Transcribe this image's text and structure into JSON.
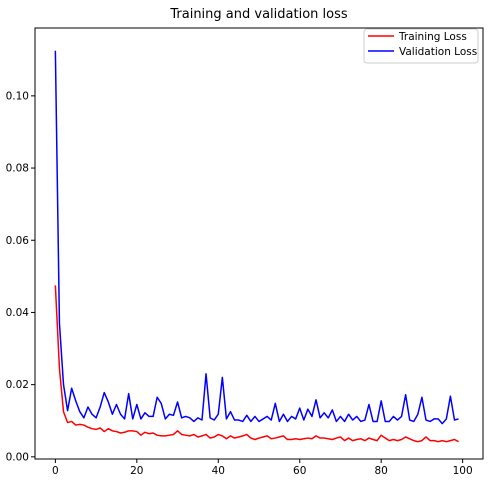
{
  "chart_data": {
    "type": "line",
    "title": "Training and validation loss",
    "xlabel": "",
    "ylabel": "",
    "xlim": [
      -5,
      105
    ],
    "ylim": [
      -0.0006,
      0.1188
    ],
    "x_ticks": [
      0,
      20,
      40,
      60,
      80,
      100
    ],
    "y_ticks": [
      0.0,
      0.02,
      0.04,
      0.06,
      0.08,
      0.1
    ],
    "x_tick_labels": [
      "0",
      "20",
      "40",
      "60",
      "80",
      "100"
    ],
    "y_tick_labels": [
      "0.00",
      "0.02",
      "0.04",
      "0.06",
      "0.08",
      "0.10"
    ],
    "grid": false,
    "legend_position": "top-right",
    "series": [
      {
        "name": "Training Loss",
        "color": "#ff0000",
        "x": [
          0,
          1,
          2,
          3,
          4,
          5,
          6,
          7,
          8,
          9,
          10,
          11,
          12,
          13,
          14,
          15,
          16,
          17,
          18,
          19,
          20,
          21,
          22,
          23,
          24,
          25,
          26,
          27,
          28,
          29,
          30,
          31,
          32,
          33,
          34,
          35,
          36,
          37,
          38,
          39,
          40,
          41,
          42,
          43,
          44,
          45,
          46,
          47,
          48,
          49,
          50,
          51,
          52,
          53,
          54,
          55,
          56,
          57,
          58,
          59,
          60,
          61,
          62,
          63,
          64,
          65,
          66,
          67,
          68,
          69,
          70,
          71,
          72,
          73,
          74,
          75,
          76,
          77,
          78,
          79,
          80,
          81,
          82,
          83,
          84,
          85,
          86,
          87,
          88,
          89,
          90,
          91,
          92,
          93,
          94,
          95,
          96,
          97,
          98,
          99
        ],
        "values": [
          0.0475,
          0.0245,
          0.0125,
          0.0095,
          0.0098,
          0.0088,
          0.009,
          0.0088,
          0.0082,
          0.0078,
          0.0076,
          0.008,
          0.007,
          0.0078,
          0.0072,
          0.007,
          0.0066,
          0.0068,
          0.0072,
          0.0072,
          0.007,
          0.006,
          0.0068,
          0.0064,
          0.0066,
          0.006,
          0.0058,
          0.0058,
          0.006,
          0.0062,
          0.0072,
          0.0062,
          0.006,
          0.0058,
          0.0062,
          0.0055,
          0.0058,
          0.0062,
          0.0052,
          0.0055,
          0.0062,
          0.0058,
          0.005,
          0.0058,
          0.0052,
          0.0055,
          0.0058,
          0.0062,
          0.0052,
          0.0048,
          0.0052,
          0.0055,
          0.0058,
          0.005,
          0.0052,
          0.0055,
          0.0058,
          0.0048,
          0.0048,
          0.005,
          0.0048,
          0.005,
          0.0052,
          0.005,
          0.0058,
          0.0052,
          0.0052,
          0.005,
          0.0048,
          0.0052,
          0.0055,
          0.0045,
          0.0052,
          0.0045,
          0.0048,
          0.005,
          0.0045,
          0.0052,
          0.0048,
          0.0045,
          0.006,
          0.0052,
          0.0045,
          0.0048,
          0.0045,
          0.0048,
          0.0055,
          0.005,
          0.0045,
          0.0042,
          0.0045,
          0.0055,
          0.0045,
          0.0045,
          0.0042,
          0.0045,
          0.0042,
          0.0045,
          0.0048,
          0.0042
        ]
      },
      {
        "name": "Validation Loss",
        "color": "#0000ff",
        "x": [
          0,
          1,
          2,
          3,
          4,
          5,
          6,
          7,
          8,
          9,
          10,
          11,
          12,
          13,
          14,
          15,
          16,
          17,
          18,
          19,
          20,
          21,
          22,
          23,
          24,
          25,
          26,
          27,
          28,
          29,
          30,
          31,
          32,
          33,
          34,
          35,
          36,
          37,
          38,
          39,
          40,
          41,
          42,
          43,
          44,
          45,
          46,
          47,
          48,
          49,
          50,
          51,
          52,
          53,
          54,
          55,
          56,
          57,
          58,
          59,
          60,
          61,
          62,
          63,
          64,
          65,
          66,
          67,
          68,
          69,
          70,
          71,
          72,
          73,
          74,
          75,
          76,
          77,
          78,
          79,
          80,
          81,
          82,
          83,
          84,
          85,
          86,
          87,
          88,
          89,
          90,
          91,
          92,
          93,
          94,
          95,
          96,
          97,
          98,
          99
        ],
        "values": [
          0.1125,
          0.037,
          0.02,
          0.0128,
          0.019,
          0.0155,
          0.0125,
          0.0108,
          0.0138,
          0.0118,
          0.0108,
          0.0138,
          0.0178,
          0.0152,
          0.0118,
          0.0145,
          0.0118,
          0.0105,
          0.0175,
          0.0105,
          0.0145,
          0.0105,
          0.0122,
          0.0112,
          0.0112,
          0.0165,
          0.0148,
          0.0105,
          0.0118,
          0.0115,
          0.0152,
          0.0108,
          0.0112,
          0.0108,
          0.0098,
          0.0108,
          0.0102,
          0.023,
          0.0108,
          0.0102,
          0.0118,
          0.022,
          0.0105,
          0.0125,
          0.0102,
          0.0102,
          0.0098,
          0.0115,
          0.0098,
          0.0112,
          0.0098,
          0.0105,
          0.0112,
          0.0102,
          0.0148,
          0.0098,
          0.0118,
          0.0098,
          0.0112,
          0.0105,
          0.0135,
          0.0102,
          0.0132,
          0.0112,
          0.0158,
          0.0108,
          0.0122,
          0.0108,
          0.013,
          0.0098,
          0.0112,
          0.0098,
          0.0118,
          0.0102,
          0.0112,
          0.0098,
          0.0102,
          0.0145,
          0.0098,
          0.0098,
          0.0155,
          0.0098,
          0.0098,
          0.0112,
          0.0102,
          0.0112,
          0.0172,
          0.0102,
          0.0098,
          0.0118,
          0.0165,
          0.0102,
          0.0098,
          0.0105,
          0.0105,
          0.0092,
          0.0105,
          0.0168,
          0.0102,
          0.0105
        ]
      }
    ]
  }
}
